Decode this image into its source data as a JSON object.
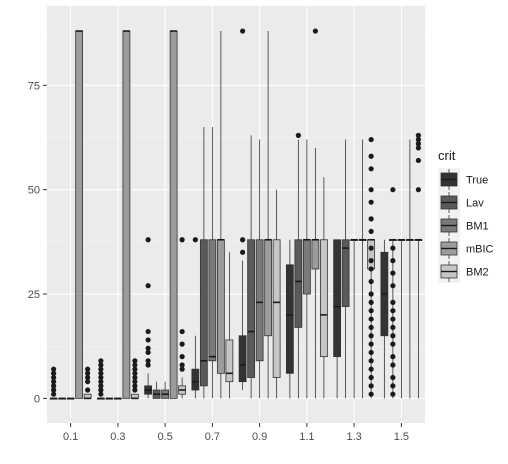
{
  "chart_data": {
    "type": "boxplot",
    "title": "",
    "xlabel": "",
    "ylabel": "",
    "categories": [
      "0.1",
      "0.3",
      "0.5",
      "0.7",
      "0.9",
      "1.1",
      "1.3",
      "1.5"
    ],
    "yticks": [
      0,
      25,
      50,
      75
    ],
    "ylim": [
      -5.9,
      94
    ],
    "grid": true,
    "legend": {
      "title": "crit",
      "position": "right",
      "entries": [
        "True",
        "Lav",
        "BM1",
        "mBIC",
        "BM2"
      ]
    },
    "series": [
      {
        "name": "True",
        "color": "#333333",
        "boxes": [
          {
            "x": "0.1",
            "min": 0,
            "q1": 0,
            "median": 0,
            "q3": 0,
            "max": 0,
            "outliers": [
              1,
              2,
              3,
              4,
              5,
              6,
              7
            ]
          },
          {
            "x": "0.3",
            "min": 0,
            "q1": 0,
            "median": 0,
            "q3": 0,
            "max": 0,
            "outliers": [
              1,
              2,
              3,
              4,
              5,
              6,
              7,
              8,
              9
            ]
          },
          {
            "x": "0.5",
            "min": 0,
            "q1": 1,
            "median": 2,
            "q3": 3,
            "max": 6,
            "outliers": [
              8,
              9,
              11,
              12,
              14,
              16,
              27,
              38
            ]
          },
          {
            "x": "0.7",
            "min": 0,
            "q1": 2,
            "median": 4,
            "q3": 7,
            "max": 15,
            "outliers": [
              38
            ]
          },
          {
            "x": "0.9",
            "min": 2,
            "q1": 4,
            "median": 8,
            "q3": 15,
            "max": 33,
            "outliers": [
              35,
              38,
              88
            ]
          },
          {
            "x": "1.1",
            "min": 0,
            "q1": 6,
            "median": 20,
            "q3": 32,
            "max": 38,
            "outliers": []
          },
          {
            "x": "1.3",
            "min": 0,
            "q1": 10,
            "median": 22,
            "q3": 38,
            "max": 38,
            "outliers": []
          },
          {
            "x": "1.5",
            "min": 0,
            "q1": 15,
            "median": 25,
            "q3": 35,
            "max": 38,
            "outliers": []
          }
        ]
      },
      {
        "name": "Lav",
        "color": "#5a5a5a",
        "boxes": [
          {
            "x": "0.1",
            "min": 0,
            "q1": 0,
            "median": 0,
            "q3": 0,
            "max": 0,
            "outliers": []
          },
          {
            "x": "0.3",
            "min": 0,
            "q1": 0,
            "median": 0,
            "q3": 0,
            "max": 0,
            "outliers": []
          },
          {
            "x": "0.5",
            "min": 0,
            "q1": 0,
            "median": 1,
            "q3": 2,
            "max": 4,
            "outliers": []
          },
          {
            "x": "0.7",
            "min": 0,
            "q1": 3,
            "median": 9,
            "q3": 38,
            "max": 65,
            "outliers": []
          },
          {
            "x": "0.9",
            "min": 0,
            "q1": 5,
            "median": 16,
            "q3": 38,
            "max": 63,
            "outliers": []
          },
          {
            "x": "1.1",
            "min": 0,
            "q1": 17,
            "median": 28,
            "q3": 38,
            "max": 62,
            "outliers": [
              63
            ]
          },
          {
            "x": "1.3",
            "min": 0,
            "q1": 22,
            "median": 36,
            "q3": 38,
            "max": 62,
            "outliers": []
          },
          {
            "x": "1.5",
            "min": 0,
            "q1": 38,
            "median": 38,
            "q3": 38,
            "max": 38,
            "outliers": [
              1,
              3,
              5,
              8,
              10,
              13,
              15,
              17,
              19,
              21,
              23,
              27,
              30,
              33,
              36,
              50
            ]
          }
        ]
      },
      {
        "name": "BM1",
        "color": "#7a7a7a",
        "boxes": [
          {
            "x": "0.1",
            "min": 0,
            "q1": 0,
            "median": 0,
            "q3": 0,
            "max": 0,
            "outliers": []
          },
          {
            "x": "0.3",
            "min": 0,
            "q1": 0,
            "median": 0,
            "q3": 0,
            "max": 0,
            "outliers": []
          },
          {
            "x": "0.5",
            "min": 0,
            "q1": 0,
            "median": 1,
            "q3": 2,
            "max": 4,
            "outliers": []
          },
          {
            "x": "0.7",
            "min": 0,
            "q1": 9,
            "median": 10,
            "q3": 38,
            "max": 65,
            "outliers": []
          },
          {
            "x": "0.9",
            "min": 0,
            "q1": 9,
            "median": 23,
            "q3": 38,
            "max": 62,
            "outliers": []
          },
          {
            "x": "1.1",
            "min": 0,
            "q1": 25,
            "median": 38,
            "q3": 38,
            "max": 62,
            "outliers": []
          },
          {
            "x": "1.3",
            "min": 0,
            "q1": 38,
            "median": 38,
            "q3": 38,
            "max": 38,
            "outliers": []
          },
          {
            "x": "1.5",
            "min": 0,
            "q1": 38,
            "median": 38,
            "q3": 38,
            "max": 38,
            "outliers": []
          }
        ]
      },
      {
        "name": "mBIC",
        "color": "#9c9c9c",
        "boxes": [
          {
            "x": "0.1",
            "min": 0,
            "q1": 0,
            "median": 88,
            "q3": 88,
            "max": 88,
            "outliers": []
          },
          {
            "x": "0.3",
            "min": 0,
            "q1": 0,
            "median": 88,
            "q3": 88,
            "max": 88,
            "outliers": []
          },
          {
            "x": "0.5",
            "min": 0,
            "q1": 0,
            "median": 88,
            "q3": 88,
            "max": 88,
            "outliers": []
          },
          {
            "x": "0.7",
            "min": 0,
            "q1": 6,
            "median": 38,
            "q3": 38,
            "max": 88,
            "outliers": []
          },
          {
            "x": "0.9",
            "min": 0,
            "q1": 15,
            "median": 38,
            "q3": 38,
            "max": 88,
            "outliers": []
          },
          {
            "x": "1.1",
            "min": 0,
            "q1": 31,
            "median": 38,
            "q3": 38,
            "max": 60,
            "outliers": [
              88
            ]
          },
          {
            "x": "1.3",
            "min": 0,
            "q1": 38,
            "median": 38,
            "q3": 38,
            "max": 62,
            "outliers": []
          },
          {
            "x": "1.5",
            "min": 0,
            "q1": 38,
            "median": 38,
            "q3": 38,
            "max": 62,
            "outliers": []
          }
        ]
      },
      {
        "name": "BM2",
        "color": "#c6c6c6",
        "boxes": [
          {
            "x": "0.1",
            "min": 0,
            "q1": 0,
            "median": 0,
            "q3": 1,
            "max": 1,
            "outliers": [
              2,
              4,
              5,
              6,
              7
            ]
          },
          {
            "x": "0.3",
            "min": 0,
            "q1": 0,
            "median": 0,
            "q3": 1,
            "max": 1,
            "outliers": [
              2,
              3,
              4,
              5,
              6,
              7,
              8,
              9
            ]
          },
          {
            "x": "0.5",
            "min": 0,
            "q1": 1,
            "median": 2,
            "q3": 3,
            "max": 5,
            "outliers": [
              7,
              8,
              10,
              13,
              16,
              38
            ]
          },
          {
            "x": "0.7",
            "min": 0,
            "q1": 4,
            "median": 6,
            "q3": 14,
            "max": 35,
            "outliers": []
          },
          {
            "x": "0.9",
            "min": 0,
            "q1": 5,
            "median": 23,
            "q3": 38,
            "max": 50,
            "outliers": []
          },
          {
            "x": "1.1",
            "min": 0,
            "q1": 10,
            "median": 20,
            "q3": 38,
            "max": 53,
            "outliers": []
          },
          {
            "x": "1.3",
            "min": 0,
            "q1": 31,
            "median": 38,
            "q3": 38,
            "max": 38,
            "outliers": [
              1,
              3,
              5,
              7,
              9,
              11,
              13,
              15,
              17,
              19,
              21,
              23,
              25,
              28,
              31,
              33,
              36,
              40,
              43,
              47,
              50,
              55,
              58,
              62
            ]
          },
          {
            "x": "1.5",
            "min": 0,
            "q1": 38,
            "median": 38,
            "q3": 38,
            "max": 38,
            "outliers": [
              50,
              57,
              60,
              61,
              62,
              63
            ]
          }
        ]
      }
    ]
  }
}
